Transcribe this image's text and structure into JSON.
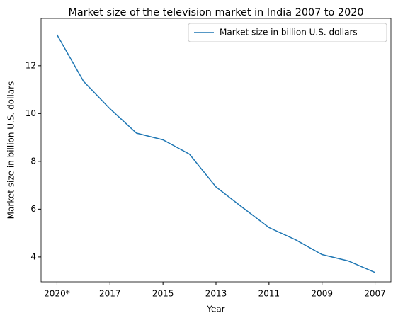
{
  "chart_data": {
    "type": "line",
    "title": "Market size of the television market in India 2007 to 2020",
    "xlabel": "Year",
    "ylabel": "Market size in billion U.S. dollars",
    "categories": [
      "2020*",
      null,
      "2017",
      null,
      "2015",
      null,
      "2013",
      null,
      "2011",
      null,
      "2009",
      null,
      "2007"
    ],
    "series": [
      {
        "name": "Market size in billion U.S. dollars",
        "color": "#1f77b4",
        "values": [
          13.3,
          11.35,
          10.2,
          9.18,
          8.9,
          8.3,
          6.93,
          6.07,
          5.23,
          4.72,
          4.1,
          3.83,
          3.35
        ]
      }
    ],
    "ylim": [
      2.96,
      13.98
    ],
    "yticks": [
      4,
      6,
      8,
      10,
      12
    ],
    "grid": false,
    "legend": "upper right"
  }
}
